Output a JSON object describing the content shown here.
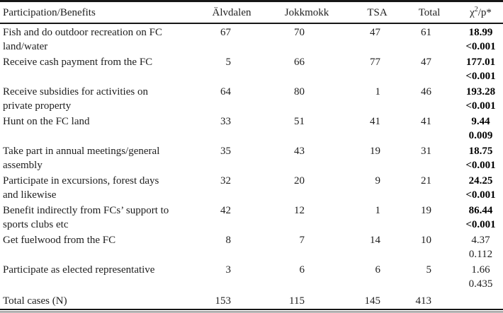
{
  "colors": {
    "text": "#1e1e1e",
    "rules": "#161616",
    "background": "#ffffff"
  },
  "table": {
    "header": {
      "label": "Participation/Benefits",
      "alvdalen": "Älvdalen",
      "jokkmokk": "Jokkmokk",
      "tsa": "TSA",
      "total": "Total",
      "chi_symbol": "χ",
      "chi_sup": "2",
      "chi_rest": "/p*"
    },
    "rows": [
      {
        "label": "Fish and do outdoor recreation on FC land/water",
        "alvdalen": "67",
        "jokkmokk": "70",
        "tsa": "47",
        "total": "61",
        "chi2": "18.99",
        "p": "<0.001",
        "emphasis": true
      },
      {
        "label": "Receive cash payment from the FC",
        "alvdalen": "5",
        "jokkmokk": "66",
        "tsa": "77",
        "total": "47",
        "chi2": "177.01",
        "p": "<0.001",
        "emphasis": true
      },
      {
        "label": "Receive subsidies for activities on private property",
        "alvdalen": "64",
        "jokkmokk": "80",
        "tsa": "1",
        "total": "46",
        "chi2": "193.28",
        "p": "<0.001",
        "emphasis": true
      },
      {
        "label": "Hunt on the FC land",
        "alvdalen": "33",
        "jokkmokk": "51",
        "tsa": "41",
        "total": "41",
        "chi2": "9.44",
        "p": "0.009",
        "emphasis": true
      },
      {
        "label": "Take part in annual meetings/general assembly",
        "alvdalen": "35",
        "jokkmokk": "43",
        "tsa": "19",
        "total": "31",
        "chi2": "18.75",
        "p": "<0.001",
        "emphasis": true
      },
      {
        "label": "Participate in excursions, forest days and likewise",
        "alvdalen": "32",
        "jokkmokk": "20",
        "tsa": "9",
        "total": "21",
        "chi2": "24.25",
        "p": "<0.001",
        "emphasis": true
      },
      {
        "label": "Benefit indirectly from FCs’ support to sports clubs etc",
        "alvdalen": "42",
        "jokkmokk": "12",
        "tsa": "1",
        "total": "19",
        "chi2": "86.44",
        "p": "<0.001",
        "emphasis": true
      },
      {
        "label": "Get fuelwood from the FC",
        "alvdalen": "8",
        "jokkmokk": "7",
        "tsa": "14",
        "total": "10",
        "chi2": "4.37",
        "p": "0.112",
        "emphasis": false
      },
      {
        "label": "Participate as elected representative",
        "alvdalen": "3",
        "jokkmokk": "6",
        "tsa": "6",
        "total": "5",
        "chi2": "1.66",
        "p": "0.435",
        "emphasis": false
      }
    ],
    "total_row": {
      "label": "Total cases (N)",
      "alvdalen": "153",
      "jokkmokk": "115",
      "tsa": "145",
      "total": "413",
      "chi2": "",
      "p": ""
    }
  }
}
